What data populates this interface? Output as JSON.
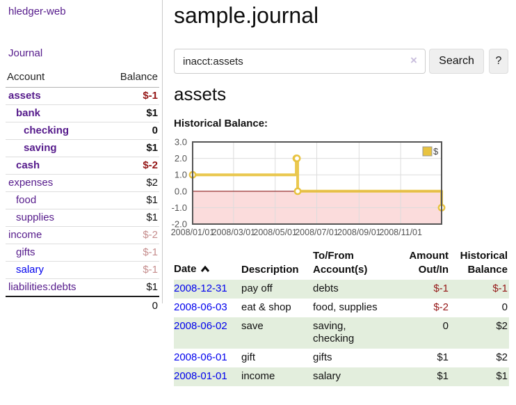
{
  "colors": {
    "link_visited": "#551a8b",
    "link_unvisited": "#0000ee",
    "negative_strong": "#941616",
    "negative_faded": "#c58d8d",
    "row_stripe_green": "#e3eedd",
    "series_gold": "#e8c340",
    "negative_region_pink": "#fbdcdc",
    "zero_line_red": "#8b1d1d",
    "chart_border_gray": "#545454"
  },
  "sidebar": {
    "brand": "hledger-web",
    "nav": {
      "journal": "Journal"
    },
    "table": {
      "header": {
        "account": "Account",
        "balance": "Balance"
      },
      "accounts": [
        {
          "name": "assets",
          "balance": "$-1"
        },
        {
          "name": "bank",
          "balance": "$1"
        },
        {
          "name": "checking",
          "balance": "0"
        },
        {
          "name": "saving",
          "balance": "$1"
        },
        {
          "name": "cash",
          "balance": "$-2"
        },
        {
          "name": "expenses",
          "balance": "$2"
        },
        {
          "name": "food",
          "balance": "$1"
        },
        {
          "name": "supplies",
          "balance": "$1"
        },
        {
          "name": "income",
          "balance": "$-2"
        },
        {
          "name": "gifts",
          "balance": "$-1"
        },
        {
          "name": "salary",
          "balance": "$-1"
        },
        {
          "name": "liabilities:debts",
          "balance": "$1"
        }
      ],
      "total": "0"
    }
  },
  "main": {
    "title": "sample.journal",
    "search": {
      "value": "inacct:assets",
      "clear": "×",
      "button": "Search",
      "help": "?"
    },
    "heading": "assets",
    "chart_label": "Historical Balance:"
  },
  "chart_data": {
    "type": "line",
    "step": true,
    "title": "Historical Balance:",
    "xlim": [
      "2008-01-01",
      "2008-12-31"
    ],
    "ylim": [
      -2,
      3
    ],
    "yticks": [
      {
        "v": 3,
        "label": "3.0"
      },
      {
        "v": 2,
        "label": "2.0"
      },
      {
        "v": 1,
        "label": "1.0"
      },
      {
        "v": 0,
        "label": "0.0"
      },
      {
        "v": -1,
        "label": "-1.0"
      },
      {
        "v": -2,
        "label": "-2.0"
      }
    ],
    "xticks": [
      {
        "date": "2008-01-01",
        "label": "2008/01/01"
      },
      {
        "date": "2008-03-01",
        "label": "2008/03/01"
      },
      {
        "date": "2008-05-01",
        "label": "2008/05/01"
      },
      {
        "date": "2008-07-01",
        "label": "2008/07/01"
      },
      {
        "date": "2008-09-01",
        "label": "2008/09/01"
      },
      {
        "date": "2008-11-01",
        "label": "2008/11/01"
      }
    ],
    "series": [
      {
        "name": "$",
        "color": "#e8c340",
        "points": [
          [
            "2008-01-01",
            1
          ],
          [
            "2008-06-01",
            2
          ],
          [
            "2008-06-02",
            2
          ],
          [
            "2008-06-03",
            0
          ],
          [
            "2008-12-31",
            -1
          ]
        ]
      }
    ],
    "negative_region_shaded": true,
    "legend_position": "top-right",
    "grid": true
  },
  "register": {
    "headers": {
      "date": "Date",
      "description": "Description",
      "accounts": "To/From Account(s)",
      "amount": "Amount Out/In",
      "balance": "Historical Balance",
      "sort_icon": "chevron-up"
    },
    "rows": [
      {
        "date": "2008-12-31",
        "description": "pay off",
        "accounts": "debts",
        "amount": "$-1",
        "balance": "$-1"
      },
      {
        "date": "2008-06-03",
        "description": "eat & shop",
        "accounts": "food, supplies",
        "amount": "$-2",
        "balance": "0"
      },
      {
        "date": "2008-06-02",
        "description": "save",
        "accounts": "saving, checking",
        "amount": "0",
        "balance": "$2"
      },
      {
        "date": "2008-06-01",
        "description": "gift",
        "accounts": "gifts",
        "amount": "$1",
        "balance": "$2"
      },
      {
        "date": "2008-01-01",
        "description": "income",
        "accounts": "salary",
        "amount": "$1",
        "balance": "$1"
      }
    ]
  }
}
